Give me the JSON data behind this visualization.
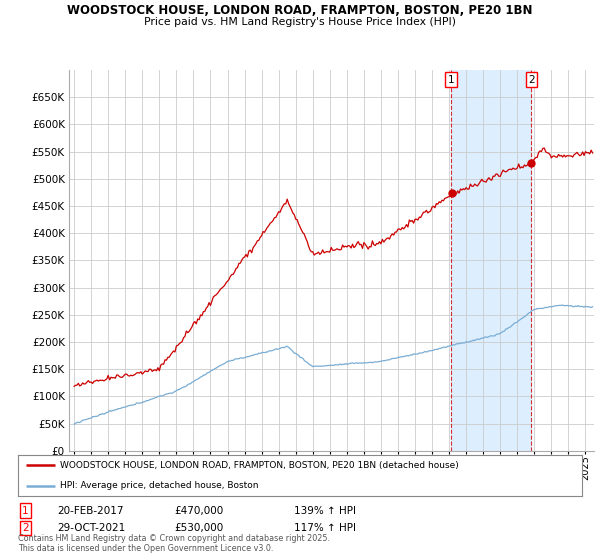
{
  "title1": "WOODSTOCK HOUSE, LONDON ROAD, FRAMPTON, BOSTON, PE20 1BN",
  "title2": "Price paid vs. HM Land Registry's House Price Index (HPI)",
  "legend_line1": "WOODSTOCK HOUSE, LONDON ROAD, FRAMPTON, BOSTON, PE20 1BN (detached house)",
  "legend_line2": "HPI: Average price, detached house, Boston",
  "footnote": "Contains HM Land Registry data © Crown copyright and database right 2025.\nThis data is licensed under the Open Government Licence v3.0.",
  "sale1_label": "1",
  "sale1_date": "20-FEB-2017",
  "sale1_price": "£470,000",
  "sale1_hpi": "139% ↑ HPI",
  "sale2_label": "2",
  "sale2_date": "29-OCT-2021",
  "sale2_price": "£530,000",
  "sale2_hpi": "117% ↑ HPI",
  "sale1_year": 2017.13,
  "sale2_year": 2021.83,
  "sale1_value": 470000,
  "sale2_value": 530000,
  "property_color": "#cc0000",
  "hpi_color": "#7aadd4",
  "shade_color": "#ddeeff",
  "background_color": "#ffffff",
  "grid_color": "#cccccc",
  "ylim": [
    0,
    700000
  ],
  "yticks": [
    0,
    50000,
    100000,
    150000,
    200000,
    250000,
    300000,
    350000,
    400000,
    450000,
    500000,
    550000,
    600000,
    650000
  ],
  "xlim_start": 1994.7,
  "xlim_end": 2025.5
}
